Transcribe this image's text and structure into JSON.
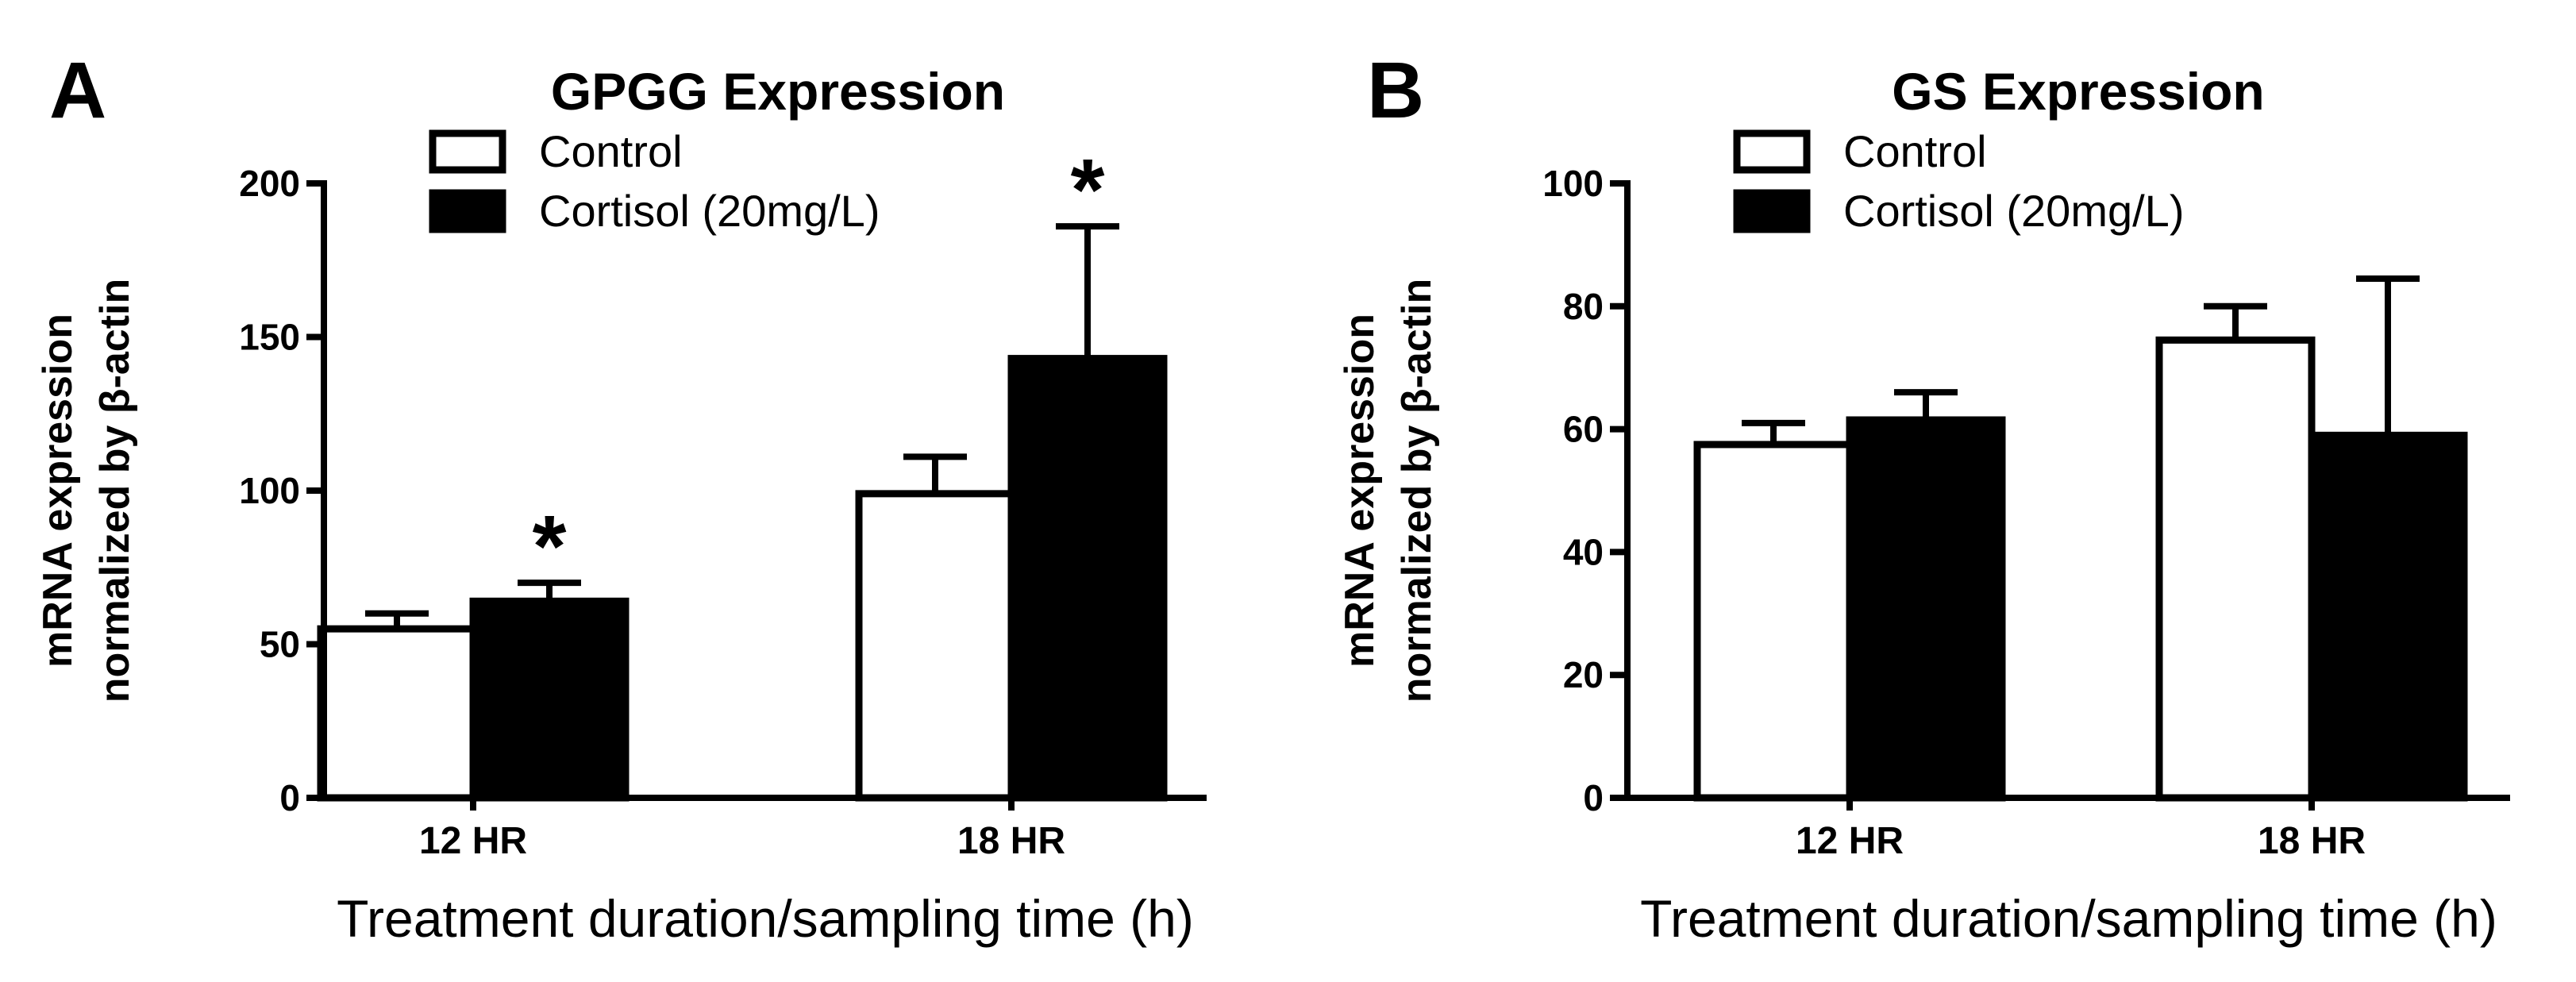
{
  "chart_data": [
    {
      "panel_label": "A",
      "type": "bar",
      "title": "GPGG Expression",
      "ylabel_lines": [
        "mRNA expression",
        "normalized by β-actin"
      ],
      "xlabel": "Treatment duration/sampling time (h)",
      "categories": [
        "12 HR",
        "18 HR"
      ],
      "ylim": [
        0,
        200
      ],
      "yticks": [
        0,
        50,
        100,
        150,
        200
      ],
      "legend": [
        "Control",
        "Cortisol (20mg/L)"
      ],
      "series": [
        {
          "name": "Control",
          "fill": "#ffffff",
          "values": [
            55,
            99
          ],
          "errors": [
            5,
            12
          ],
          "significant": [
            false,
            false
          ]
        },
        {
          "name": "Cortisol (20mg/L)",
          "fill": "#000000",
          "values": [
            64,
            143
          ],
          "errors": [
            6,
            43
          ],
          "significant": [
            true,
            true
          ]
        }
      ],
      "significance_marker": "*"
    },
    {
      "panel_label": "B",
      "type": "bar",
      "title": "GS Expression",
      "ylabel_lines": [
        "mRNA expression",
        "normalized by β-actin"
      ],
      "xlabel": "Treatment duration/sampling time (h)",
      "categories": [
        "12 HR",
        "18 HR"
      ],
      "ylim": [
        0,
        100
      ],
      "yticks": [
        0,
        20,
        40,
        60,
        80,
        100
      ],
      "legend": [
        "Control",
        "Cortisol (20mg/L)"
      ],
      "series": [
        {
          "name": "Control",
          "fill": "#ffffff",
          "values": [
            57.5,
            74.5
          ],
          "errors": [
            3.5,
            5.5
          ],
          "significant": [
            false,
            false
          ]
        },
        {
          "name": "Cortisol (20mg/L)",
          "fill": "#000000",
          "values": [
            61.5,
            59
          ],
          "errors": [
            4.5,
            25.5
          ],
          "significant": [
            false,
            false
          ]
        }
      ],
      "significance_marker": "*"
    }
  ]
}
